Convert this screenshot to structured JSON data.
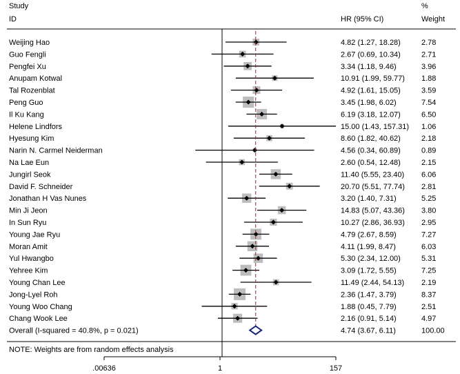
{
  "header": {
    "study_label": "Study",
    "id_label": "ID",
    "hr_label": "HR (95% CI)",
    "pct_label": "%",
    "weight_label": "Weight"
  },
  "note": "NOTE: Weights are from random effects analysis",
  "chart_data": {
    "type": "forest",
    "x_scale": "log",
    "xlim": [
      0.00636,
      157
    ],
    "x_ticks": [
      {
        "value": 0.00636,
        "label": ".00636"
      },
      {
        "value": 1,
        "label": "1"
      },
      {
        "value": 157,
        "label": "157"
      }
    ],
    "null_line": 1,
    "studies": [
      {
        "name": "Weijing Hao",
        "hr": 4.82,
        "lo": 1.27,
        "hi": 18.28,
        "ci_text": "4.82 (1.27, 18.28)",
        "weight": 2.78,
        "weight_text": "2.78"
      },
      {
        "name": "Guo Fengli",
        "hr": 2.67,
        "lo": 0.69,
        "hi": 10.34,
        "ci_text": "2.67 (0.69, 10.34)",
        "weight": 2.71,
        "weight_text": "2.71"
      },
      {
        "name": "Pengfei Xu",
        "hr": 3.34,
        "lo": 1.18,
        "hi": 9.46,
        "ci_text": "3.34 (1.18, 9.46)",
        "weight": 3.96,
        "weight_text": "3.96"
      },
      {
        "name": "Anupam Kotwal",
        "hr": 10.91,
        "lo": 1.99,
        "hi": 59.77,
        "ci_text": "10.91 (1.99, 59.77)",
        "weight": 1.88,
        "weight_text": "1.88"
      },
      {
        "name": "Tal Rozenblat",
        "hr": 4.92,
        "lo": 1.61,
        "hi": 15.05,
        "ci_text": "4.92 (1.61, 15.05)",
        "weight": 3.59,
        "weight_text": "3.59"
      },
      {
        "name": "Peng Guo",
        "hr": 3.45,
        "lo": 1.98,
        "hi": 6.02,
        "ci_text": "3.45 (1.98, 6.02)",
        "weight": 7.54,
        "weight_text": "7.54"
      },
      {
        "name": "Il Ku Kang",
        "hr": 6.19,
        "lo": 3.18,
        "hi": 12.07,
        "ci_text": "6.19 (3.18, 12.07)",
        "weight": 6.5,
        "weight_text": "6.50"
      },
      {
        "name": "Helene Lindfors",
        "hr": 15.0,
        "lo": 1.43,
        "hi": 157.31,
        "ci_text": "15.00 (1.43, 157.31)",
        "weight": 1.06,
        "weight_text": "1.06"
      },
      {
        "name": "Hyesung Kim",
        "hr": 8.6,
        "lo": 1.82,
        "hi": 40.62,
        "ci_text": "8.60 (1.82, 40.62)",
        "weight": 2.18,
        "weight_text": "2.18"
      },
      {
        "name": "Narin N. Carmel Neiderman",
        "hr": 4.56,
        "lo": 0.34,
        "hi": 60.89,
        "ci_text": "4.56 (0.34, 60.89)",
        "weight": 0.89,
        "weight_text": "0.89"
      },
      {
        "name": "Na Lae Eun",
        "hr": 2.6,
        "lo": 0.54,
        "hi": 12.48,
        "ci_text": "2.60 (0.54, 12.48)",
        "weight": 2.15,
        "weight_text": "2.15"
      },
      {
        "name": "Jungirl Seok",
        "hr": 11.4,
        "lo": 5.55,
        "hi": 23.4,
        "ci_text": "11.40 (5.55, 23.40)",
        "weight": 6.06,
        "weight_text": "6.06"
      },
      {
        "name": "David F. Schneider",
        "hr": 20.7,
        "lo": 5.51,
        "hi": 77.74,
        "ci_text": "20.70 (5.51, 77.74)",
        "weight": 2.81,
        "weight_text": "2.81"
      },
      {
        "name": "Jonathan H Vas Nunes",
        "hr": 3.2,
        "lo": 1.4,
        "hi": 7.31,
        "ci_text": "3.20 (1.40, 7.31)",
        "weight": 5.25,
        "weight_text": "5.25"
      },
      {
        "name": "Min Ji Jeon",
        "hr": 14.83,
        "lo": 5.07,
        "hi": 43.36,
        "ci_text": "14.83 (5.07, 43.36)",
        "weight": 3.8,
        "weight_text": "3.80"
      },
      {
        "name": "In Sun Ryu",
        "hr": 10.27,
        "lo": 2.86,
        "hi": 36.93,
        "ci_text": "10.27 (2.86, 36.93)",
        "weight": 2.95,
        "weight_text": "2.95"
      },
      {
        "name": "Young Jae Ryu",
        "hr": 4.79,
        "lo": 2.67,
        "hi": 8.59,
        "ci_text": "4.79 (2.67, 8.59)",
        "weight": 7.27,
        "weight_text": "7.27"
      },
      {
        "name": "Moran Amit",
        "hr": 4.11,
        "lo": 1.99,
        "hi": 8.47,
        "ci_text": "4.11 (1.99, 8.47)",
        "weight": 6.03,
        "weight_text": "6.03"
      },
      {
        "name": "Yul Hwangbo",
        "hr": 5.3,
        "lo": 2.34,
        "hi": 12.0,
        "ci_text": "5.30 (2.34, 12.00)",
        "weight": 5.31,
        "weight_text": "5.31"
      },
      {
        "name": "Yehree Kim",
        "hr": 3.09,
        "lo": 1.72,
        "hi": 5.55,
        "ci_text": "3.09 (1.72, 5.55)",
        "weight": 7.25,
        "weight_text": "7.25"
      },
      {
        "name": "Young Chan Lee",
        "hr": 11.49,
        "lo": 2.44,
        "hi": 54.13,
        "ci_text": "11.49 (2.44, 54.13)",
        "weight": 2.19,
        "weight_text": "2.19"
      },
      {
        "name": "Jong-Lyel Roh",
        "hr": 2.36,
        "lo": 1.47,
        "hi": 3.79,
        "ci_text": "2.36 (1.47, 3.79)",
        "weight": 8.37,
        "weight_text": "8.37"
      },
      {
        "name": "Young Woo Chang",
        "hr": 1.88,
        "lo": 0.45,
        "hi": 7.79,
        "ci_text": "1.88 (0.45, 7.79)",
        "weight": 2.51,
        "weight_text": "2.51"
      },
      {
        "name": "Chang Wook Lee",
        "hr": 2.16,
        "lo": 0.91,
        "hi": 5.14,
        "ci_text": "2.16 (0.91, 5.14)",
        "weight": 4.97,
        "weight_text": "4.97"
      }
    ],
    "overall": {
      "label": "Overall  (I-squared = 40.8%, p = 0.021)",
      "hr": 4.74,
      "lo": 3.67,
      "hi": 6.11,
      "ci_text": "4.74 (3.67, 6.11)",
      "weight_text": "100.00"
    },
    "colors": {
      "box": "#bdbdbd",
      "ci_line": "#000000",
      "overall_diamond": "#1a237e",
      "overall_line": "#9c2a2a"
    }
  }
}
